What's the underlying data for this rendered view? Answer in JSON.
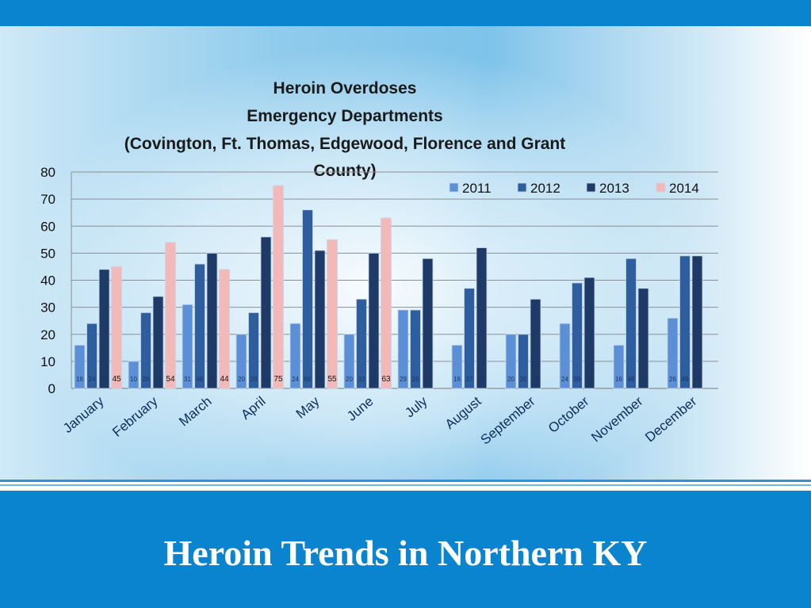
{
  "slide": {
    "title": "Heroin Trends in Northern KY"
  },
  "colors": {
    "bar_2011": "#5b8fd6",
    "bar_2012": "#2e5e9e",
    "bar_2013": "#1e3a66",
    "bar_2014": "#f3b8b8",
    "banner": "#0a84cf"
  },
  "chart_data": {
    "type": "bar",
    "title_lines": [
      "Heroin Overdoses",
      "Emergency Departments",
      "(Covington, Ft. Thomas, Edgewood, Florence and Grant",
      "County)"
    ],
    "categories": [
      "January",
      "February",
      "March",
      "April",
      "May",
      "June",
      "July",
      "August",
      "September",
      "October",
      "November",
      "December"
    ],
    "series": [
      {
        "name": "2011",
        "values": [
          16,
          10,
          31,
          20,
          24,
          20,
          29,
          16,
          20,
          24,
          16,
          26
        ]
      },
      {
        "name": "2012",
        "values": [
          24,
          28,
          46,
          28,
          66,
          33,
          29,
          37,
          20,
          39,
          48,
          49
        ]
      },
      {
        "name": "2013",
        "values": [
          44,
          34,
          50,
          56,
          51,
          50,
          48,
          52,
          33,
          41,
          37,
          49
        ]
      },
      {
        "name": "2014",
        "values": [
          45,
          54,
          44,
          75,
          55,
          63,
          null,
          null,
          null,
          null,
          null,
          null
        ]
      }
    ],
    "yticks": [
      0,
      10,
      20,
      30,
      40,
      50,
      60,
      70,
      80
    ],
    "ylim": [
      0,
      80
    ],
    "grid": true,
    "legend_position": "top-right"
  }
}
